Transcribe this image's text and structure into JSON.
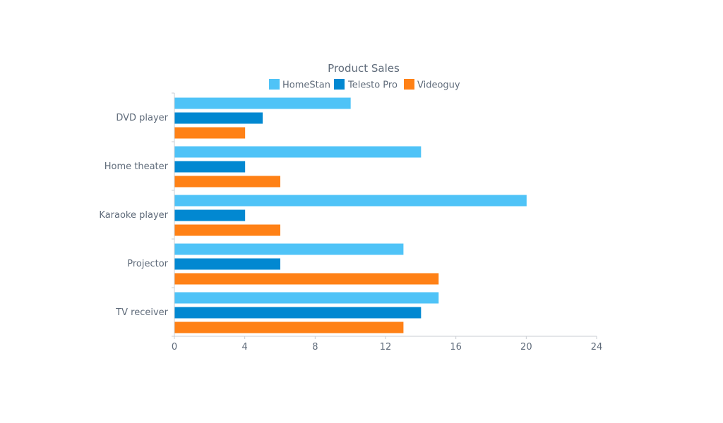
{
  "chart_data": {
    "type": "bar",
    "orientation": "horizontal",
    "title": "Product Sales",
    "xlabel": "",
    "ylabel": "",
    "categories": [
      "DVD player",
      "Home theater",
      "Karaoke player",
      "Projector",
      "TV receiver"
    ],
    "series": [
      {
        "name": "HomeStan",
        "color": "#4FC3F7",
        "values": [
          10,
          14,
          20,
          13,
          15
        ]
      },
      {
        "name": "Telesto Pro",
        "color": "#0288D1",
        "values": [
          5,
          4,
          4,
          6,
          14
        ]
      },
      {
        "name": "Videoguy",
        "color": "#FF8116",
        "values": [
          4,
          6,
          6,
          15,
          13
        ]
      }
    ],
    "xlim": [
      0,
      24
    ],
    "xticks": [
      0,
      4,
      8,
      12,
      16,
      20,
      24
    ],
    "grid": false,
    "legend_position": "top-center"
  },
  "colors": {
    "text": "#5F6B7A",
    "axis": "#C9CDD3"
  }
}
